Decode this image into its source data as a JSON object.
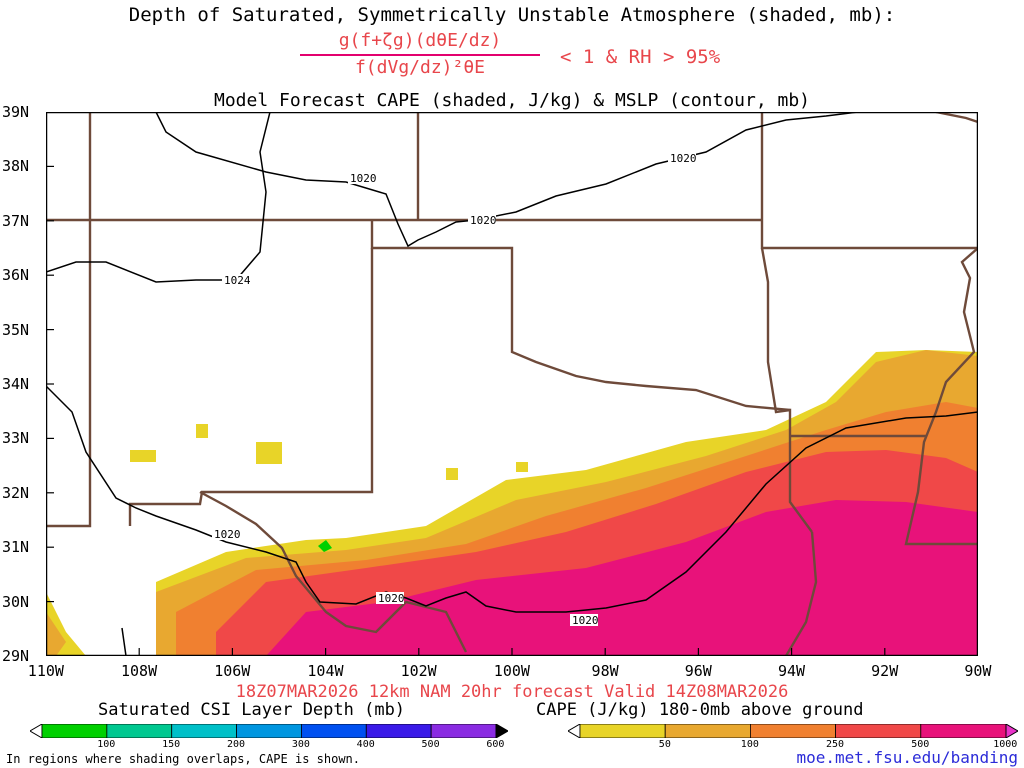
{
  "titles": {
    "main": "Depth of Saturated, Symmetrically Unstable Atmosphere (shaded, mb):",
    "formula_numerator": "g(f+ζg)(dθE/dz)",
    "formula_denominator": "f(dVg/dz)²θE",
    "condition": "< 1 & RH > 95%",
    "subtitle": "Model Forecast CAPE (shaded, J/kg) & MSLP (contour, mb)",
    "valid": "18Z07MAR2026 12km NAM 20hr forecast Valid 14Z08MAR2026"
  },
  "axes": {
    "lat_labels": [
      "39N",
      "38N",
      "37N",
      "36N",
      "35N",
      "34N",
      "33N",
      "32N",
      "31N",
      "30N",
      "29N"
    ],
    "lon_labels": [
      "110W",
      "108W",
      "106W",
      "104W",
      "102W",
      "100W",
      "98W",
      "96W",
      "94W",
      "92W",
      "90W"
    ]
  },
  "contours": {
    "mslp_labels": [
      "1020",
      "1020",
      "1020",
      "1024",
      "1020",
      "1020",
      "1020"
    ]
  },
  "colorbar_csi": {
    "title": "Saturated CSI Layer Depth (mb)",
    "ticks": [
      "100",
      "150",
      "200",
      "300",
      "400",
      "500",
      "600"
    ],
    "colors": [
      "#ffffff",
      "#00d000",
      "#00c890",
      "#00c0c8",
      "#0096e0",
      "#0050f0",
      "#3a1ae8",
      "#8a2be2",
      "#000000"
    ]
  },
  "colorbar_cape": {
    "title": "CAPE (J/kg) 180-0mb above ground",
    "ticks": [
      "50",
      "100",
      "250",
      "500",
      "1000"
    ],
    "colors": [
      "#ffffff",
      "#e8d428",
      "#e8a830",
      "#f08030",
      "#f04848",
      "#e8127a",
      "#e833c8"
    ]
  },
  "footer": {
    "note": "In regions where shading overlaps, CAPE is shown.",
    "url": "moe.met.fsu.edu/banding"
  }
}
